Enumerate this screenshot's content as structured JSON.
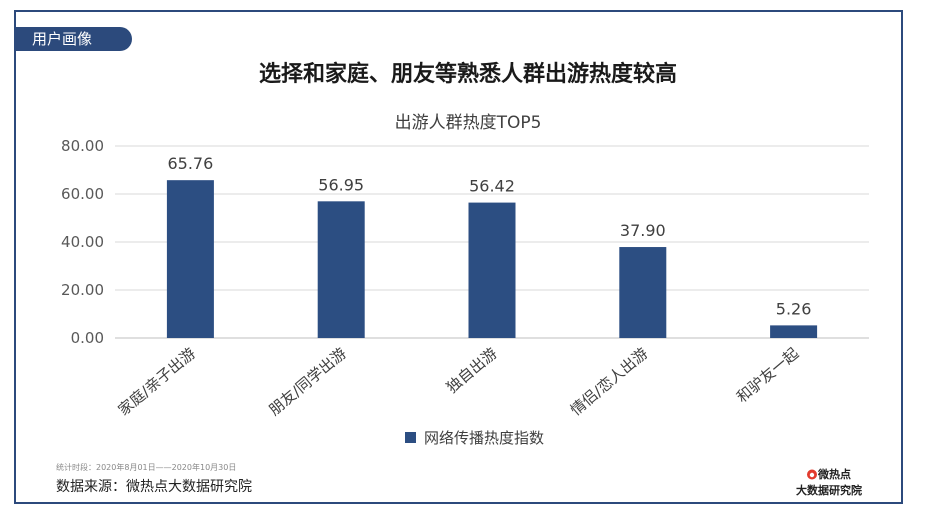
{
  "tag": "用户画像",
  "headline": "选择和家庭、朋友等熟悉人群出游热度较高",
  "footer": {
    "note": "统计时段：2020年8月01日——2020年10月30日",
    "source": "数据来源：微热点大数据研究院"
  },
  "logo": {
    "brand": "微热点",
    "org": "大数据研究院"
  },
  "colors": {
    "bar": "#2c4e82",
    "frame": "#2c4a7c",
    "grid": "#d9d9d9"
  },
  "chart_data": {
    "type": "bar",
    "title": "出游人群热度TOP5",
    "categories": [
      "家庭/亲子出游",
      "朋友/同学出游",
      "独自出游",
      "情侣/恋人出游",
      "和驴友一起"
    ],
    "series": [
      {
        "name": "网络传播热度指数",
        "values": [
          65.76,
          56.95,
          56.42,
          37.9,
          5.26
        ]
      }
    ],
    "value_labels": [
      "65.76",
      "56.95",
      "56.42",
      "37.90",
      "5.26"
    ],
    "y_ticks": [
      "0.00",
      "20.00",
      "40.00",
      "60.00",
      "80.00"
    ],
    "ylim": [
      0,
      80
    ],
    "grid": true,
    "legend": "bottom"
  }
}
